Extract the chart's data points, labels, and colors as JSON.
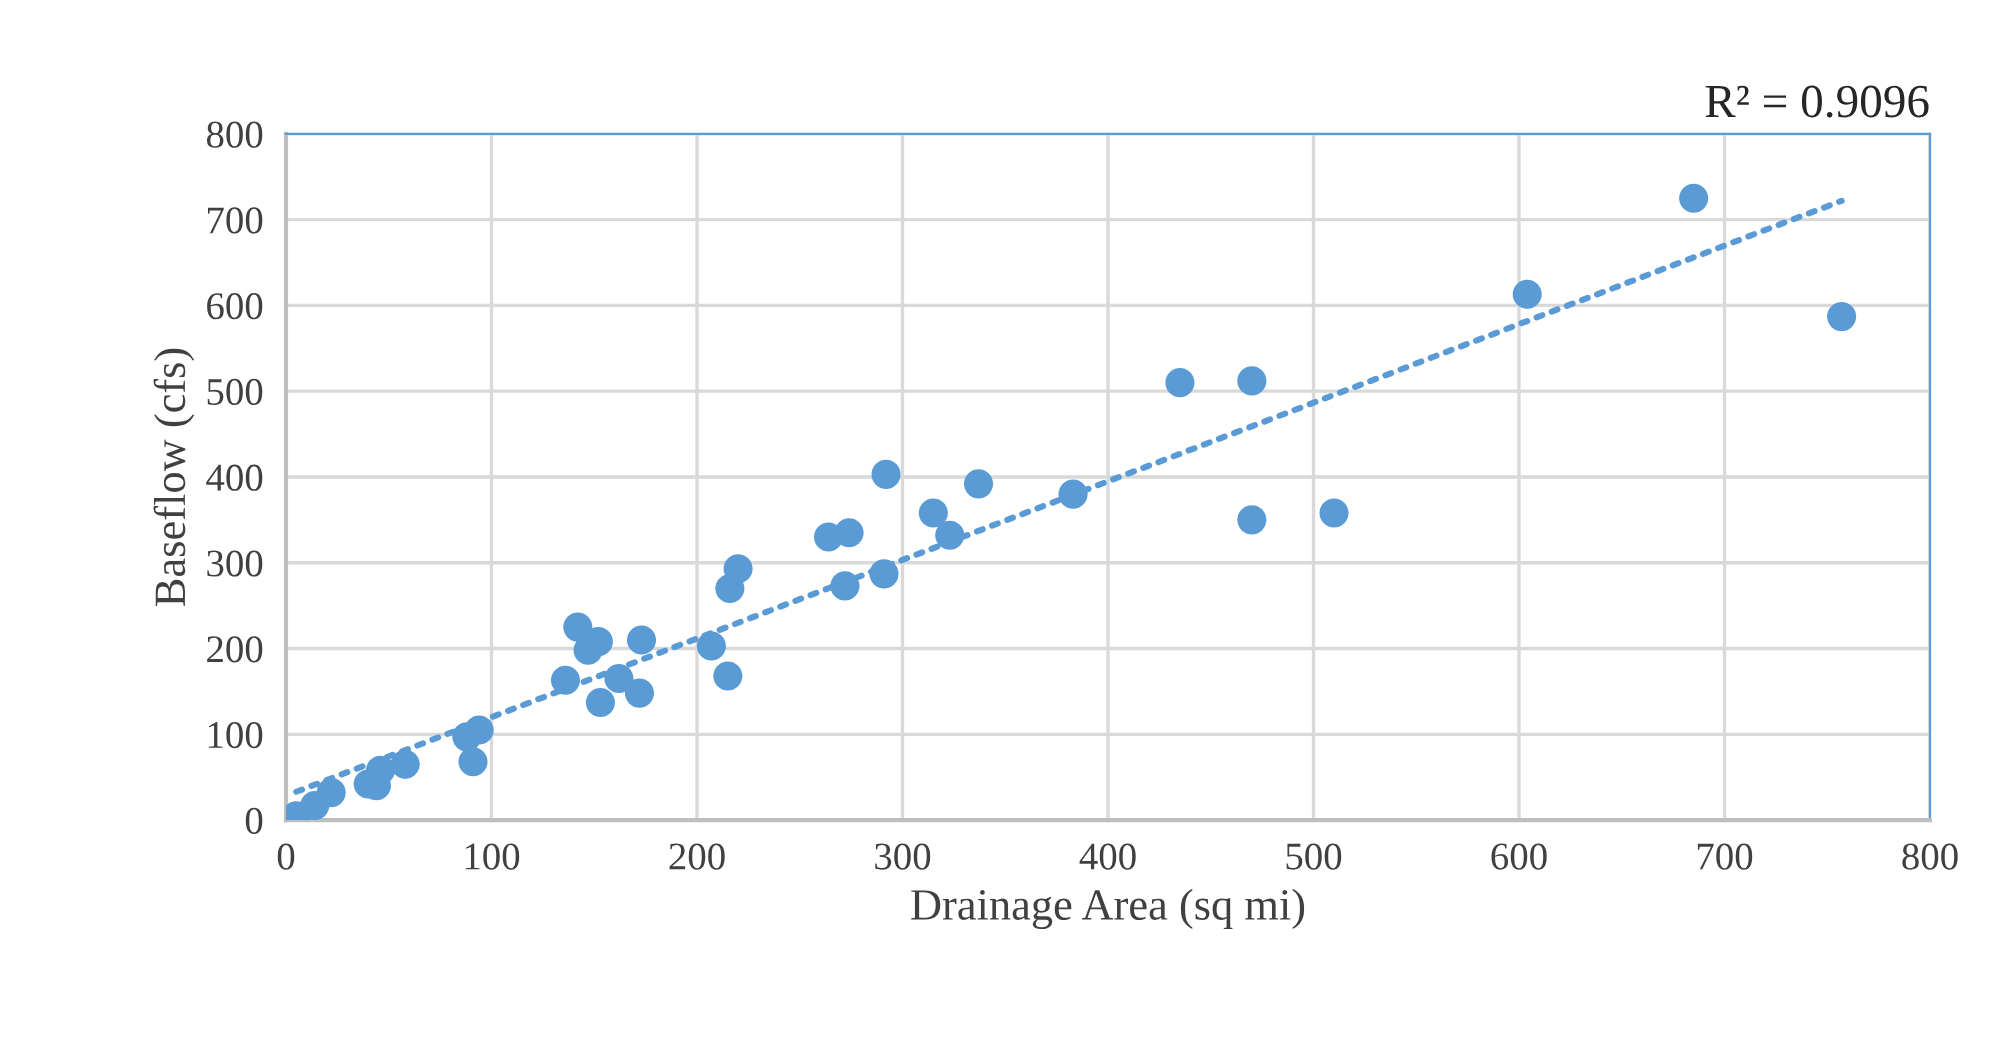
{
  "chart_data": {
    "type": "scatter",
    "xlabel": "Drainage Area (sq mi)",
    "ylabel": "Baseflow (cfs)",
    "annotations": [
      "R² = 0.9096"
    ],
    "xlim": [
      0,
      800
    ],
    "xticks": [
      0,
      100,
      200,
      300,
      400,
      500,
      600,
      700,
      800
    ],
    "ylim": [
      0,
      800
    ],
    "yticks": [
      0,
      100,
      200,
      300,
      400,
      500,
      600,
      700,
      800
    ],
    "grid": true,
    "legend": false,
    "series": [
      {
        "color": "#5b9bd5",
        "marker": "circle",
        "x": [
          5,
          14,
          22,
          40,
          44,
          46,
          58,
          88,
          91,
          94,
          136,
          142,
          147,
          152,
          153,
          162,
          172,
          173,
          207,
          215,
          216,
          220,
          264,
          272,
          274,
          291,
          292,
          315,
          323,
          337,
          383,
          435,
          470,
          470,
          510,
          604,
          685,
          757
        ],
        "values": [
          5,
          17,
          32,
          42,
          40,
          58,
          65,
          97,
          68,
          105,
          163,
          225,
          198,
          208,
          137,
          165,
          148,
          210,
          203,
          168,
          270,
          293,
          330,
          273,
          335,
          287,
          403,
          358,
          332,
          392,
          380,
          510,
          512,
          350,
          358,
          613,
          725,
          587
        ]
      },
      {
        "type": "line",
        "color": "#5b9bd5",
        "line_style": "dotted",
        "marker": "none",
        "x": [
          5,
          757
        ],
        "values": [
          33,
          722
        ]
      }
    ]
  }
}
